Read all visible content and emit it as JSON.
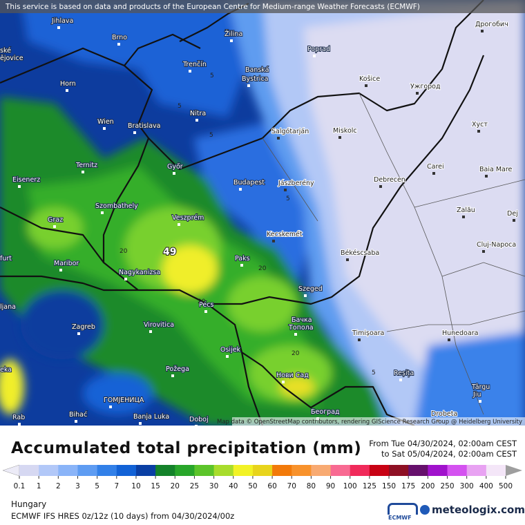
{
  "header": {
    "notice": "This service is based on data and products of the European Centre for Medium-range Weather Forecasts (ECMWF)"
  },
  "map": {
    "attribution": "Map data © OpenStreetMap contributors, rendering GIScience Research Group @ Heidelberg University",
    "places": [
      "Jihlava",
      "Brno",
      "Žilina",
      "Poprad",
      "Дрогобич",
      "ské",
      "ějovice",
      "Trenčín",
      "Banská",
      "Bystrica",
      "Košice",
      "Ужгород",
      "Horn",
      "Nitra",
      "Wien",
      "Bratislava",
      "Salgótarján",
      "Miskolc",
      "Хуст",
      "Ternitz",
      "Győr",
      "Carei",
      "Baia Mare",
      "Eisenerz",
      "Budapest",
      "Jászberény",
      "Debrecen",
      "Szombathely",
      "Graz",
      "Veszprém",
      "Zalău",
      "Dej",
      "Kecskemét",
      "Cluj-Napoca",
      "furt",
      "Maribor",
      "Paks",
      "Békéscsaba",
      "Nagykanizsa",
      "Szeged",
      "ljana",
      "Pécs",
      "Бачка",
      "Топола",
      "Zagreb",
      "Virovitica",
      "Timișoara",
      "Hunedoara",
      "Osijek",
      "Požega",
      "Нови Сад",
      "Reșița",
      "Târgu",
      "Jiu",
      "eka",
      "ГОМЈЕНИЦА",
      "Bihać",
      "Banja Luka",
      "Doboj",
      "Београд",
      "Drobeta",
      "Rab"
    ],
    "contour_labels": [
      5,
      5,
      5,
      5,
      20,
      20,
      20,
      20,
      5
    ],
    "maximum": 49
  },
  "footer": {
    "title": "Accumulated total precipitation (mm)",
    "from": "From Tue 04/30/2024, 02:00am CEST",
    "to": "to Sat 05/04/2024, 02:00am CEST",
    "scale_levels": [
      0.1,
      1,
      2,
      3,
      5,
      7,
      10,
      15,
      20,
      25,
      30,
      40,
      50,
      60,
      70,
      80,
      90,
      100,
      125,
      150,
      175,
      200,
      250,
      300,
      400,
      500
    ],
    "scale_colors": [
      "#ecebf7",
      "#d6d8f2",
      "#b2c8f8",
      "#8ab4f8",
      "#5e9cf2",
      "#3280e8",
      "#1262d6",
      "#0a3fa4",
      "#14822a",
      "#28a62a",
      "#5cc42a",
      "#a8dc2c",
      "#f2f226",
      "#e8d41c",
      "#f27a0a",
      "#f8922c",
      "#f8aa72",
      "#f86a92",
      "#f02a5a",
      "#c80214",
      "#8e1024",
      "#66106c",
      "#a012cc",
      "#d452f0",
      "#e8a2f2",
      "#f4e6f8",
      "#d2d2d2",
      "#9e9e9e"
    ],
    "region": "Hungary",
    "model": "ECMWF IFS HRES 0z/12z (10 days) from 04/30/2024/00z",
    "logo_left": "ECMWF",
    "logo_right": "meteologix.com"
  }
}
